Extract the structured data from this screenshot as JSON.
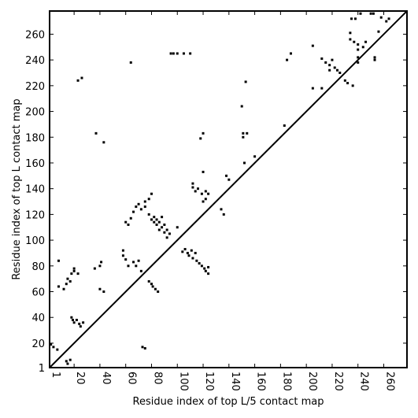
{
  "chart_data": {
    "type": "scatter",
    "xlabel": "Residue index of top L/5 contact map",
    "ylabel": "Residue index of top L contact map",
    "xlim": [
      1,
      278
    ],
    "ylim": [
      1,
      278
    ],
    "xticks": [
      1,
      20,
      40,
      60,
      80,
      100,
      120,
      140,
      160,
      180,
      200,
      220,
      240,
      260
    ],
    "yticks": [
      1,
      20,
      40,
      60,
      80,
      100,
      120,
      140,
      160,
      180,
      200,
      220,
      240,
      260
    ],
    "grid": false,
    "diagonal_line": true,
    "lower_triangle": [
      [
        2,
        19
      ],
      [
        4,
        17
      ],
      [
        7,
        15
      ],
      [
        14,
        6
      ],
      [
        15,
        4
      ],
      [
        17,
        7
      ],
      [
        18,
        40
      ],
      [
        19,
        38
      ],
      [
        20,
        36
      ],
      [
        22,
        38
      ],
      [
        24,
        35
      ],
      [
        25,
        33
      ],
      [
        27,
        36
      ],
      [
        73,
        17
      ],
      [
        75,
        16
      ],
      [
        78,
        68
      ],
      [
        80,
        66
      ],
      [
        81,
        64
      ],
      [
        83,
        62
      ],
      [
        85,
        60
      ],
      [
        104,
        91
      ],
      [
        106,
        93
      ],
      [
        108,
        90
      ],
      [
        109,
        88
      ],
      [
        111,
        92
      ],
      [
        112,
        86
      ],
      [
        114,
        90
      ],
      [
        115,
        84
      ],
      [
        117,
        82
      ],
      [
        119,
        80
      ],
      [
        121,
        78
      ],
      [
        122,
        76
      ],
      [
        124,
        74
      ],
      [
        124,
        79
      ],
      [
        152,
        160
      ],
      [
        160,
        165
      ],
      [
        205,
        218
      ],
      [
        212,
        218
      ],
      [
        230,
        224
      ],
      [
        232,
        222
      ],
      [
        236,
        220
      ],
      [
        240,
        238
      ],
      [
        240,
        242
      ],
      [
        253,
        240
      ],
      [
        253,
        242
      ],
      [
        256,
        262
      ]
    ],
    "upper_triangle": [
      [
        8,
        64
      ],
      [
        8,
        84
      ],
      [
        12,
        62
      ],
      [
        14,
        66
      ],
      [
        15,
        70
      ],
      [
        17,
        68
      ],
      [
        18,
        74
      ],
      [
        20,
        76
      ],
      [
        20,
        78
      ],
      [
        23,
        74
      ],
      [
        23,
        224
      ],
      [
        26,
        226
      ],
      [
        36,
        78
      ],
      [
        37,
        183
      ],
      [
        40,
        80
      ],
      [
        40,
        62
      ],
      [
        41,
        83
      ],
      [
        43,
        60
      ],
      [
        43,
        176
      ],
      [
        58,
        88
      ],
      [
        58,
        92
      ],
      [
        60,
        85
      ],
      [
        60,
        114
      ],
      [
        62,
        80
      ],
      [
        62,
        112
      ],
      [
        64,
        117
      ],
      [
        64,
        238
      ],
      [
        66,
        83
      ],
      [
        66,
        122
      ],
      [
        68,
        80
      ],
      [
        68,
        126
      ],
      [
        70,
        84
      ],
      [
        70,
        128
      ],
      [
        72,
        76
      ],
      [
        72,
        124
      ],
      [
        75,
        126
      ],
      [
        75,
        130
      ],
      [
        78,
        120
      ],
      [
        78,
        132
      ],
      [
        80,
        116
      ],
      [
        80,
        136
      ],
      [
        82,
        118
      ],
      [
        82,
        114
      ],
      [
        84,
        112
      ],
      [
        84,
        116
      ],
      [
        86,
        108
      ],
      [
        86,
        114
      ],
      [
        88,
        110
      ],
      [
        88,
        118
      ],
      [
        90,
        106
      ],
      [
        90,
        112
      ],
      [
        92,
        102
      ],
      [
        92,
        108
      ],
      [
        94,
        105
      ],
      [
        95,
        245
      ],
      [
        97,
        245
      ],
      [
        100,
        110
      ],
      [
        100,
        245
      ],
      [
        105,
        245
      ],
      [
        110,
        245
      ],
      [
        112,
        141
      ],
      [
        112,
        144
      ],
      [
        114,
        138
      ],
      [
        116,
        140
      ],
      [
        118,
        179
      ],
      [
        119,
        136
      ],
      [
        120,
        130
      ],
      [
        120,
        153
      ],
      [
        120,
        183
      ],
      [
        122,
        132
      ],
      [
        122,
        138
      ],
      [
        124,
        136
      ],
      [
        134,
        124
      ],
      [
        136,
        120
      ],
      [
        138,
        150
      ],
      [
        140,
        147
      ],
      [
        150,
        204
      ],
      [
        151,
        180
      ],
      [
        151,
        183
      ],
      [
        153,
        223
      ],
      [
        154,
        183
      ],
      [
        183,
        189
      ],
      [
        185,
        240
      ],
      [
        188,
        245
      ],
      [
        205,
        251
      ],
      [
        212,
        241
      ],
      [
        215,
        238
      ],
      [
        218,
        232
      ],
      [
        218,
        236
      ],
      [
        220,
        240
      ],
      [
        222,
        234
      ],
      [
        224,
        232
      ],
      [
        226,
        230
      ],
      [
        234,
        256
      ],
      [
        234,
        261
      ],
      [
        235,
        272
      ],
      [
        237,
        254
      ],
      [
        238,
        272
      ],
      [
        240,
        248
      ],
      [
        240,
        252
      ],
      [
        242,
        276
      ],
      [
        244,
        250
      ],
      [
        246,
        254
      ],
      [
        250,
        276
      ],
      [
        252,
        276
      ],
      [
        258,
        273
      ],
      [
        262,
        270
      ],
      [
        264,
        272
      ]
    ]
  }
}
